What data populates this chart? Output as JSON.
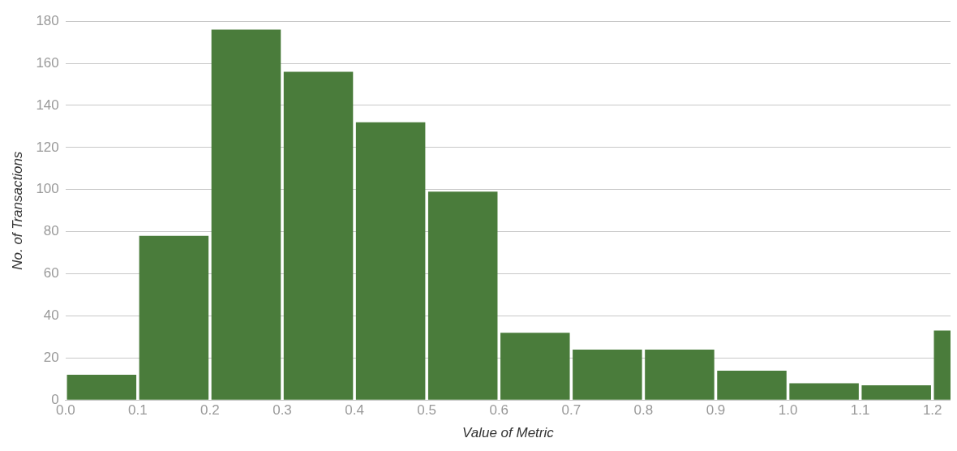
{
  "chart_data": {
    "type": "histogram",
    "xlabel": "Value of Metric",
    "ylabel": "No. of Transactions",
    "bins": [
      0,
      0.1,
      0.2,
      0.3,
      0.4,
      0.5,
      0.6,
      0.7,
      0.8,
      0.9,
      1.0,
      1.1,
      1.2,
      1.3
    ],
    "values": [
      12,
      78,
      176,
      156,
      132,
      99,
      32,
      24,
      24,
      14,
      8,
      7,
      33
    ],
    "color": "#4a7c3b",
    "xlim": [
      0,
      1.225
    ],
    "xticks": [
      {
        "value": 0,
        "label": "0.0"
      },
      {
        "value": 0.1,
        "label": "0.1"
      },
      {
        "value": 0.2,
        "label": "0.2"
      },
      {
        "value": 0.3,
        "label": "0.3"
      },
      {
        "value": 0.4,
        "label": "0.4"
      },
      {
        "value": 0.5,
        "label": "0.5"
      },
      {
        "value": 0.6,
        "label": "0.6"
      },
      {
        "value": 0.7,
        "label": "0.7"
      },
      {
        "value": 0.8,
        "label": "0.8"
      },
      {
        "value": 0.9,
        "label": "0.9"
      },
      {
        "value": 1.0,
        "label": "1.0"
      },
      {
        "value": 1.1,
        "label": "1.1"
      },
      {
        "value": 1.2,
        "label": "1.2"
      }
    ],
    "ylim": [
      0,
      180
    ],
    "yticks": [
      0,
      20,
      40,
      60,
      80,
      100,
      120,
      140,
      160,
      180
    ],
    "grid": "y",
    "legend": false
  }
}
